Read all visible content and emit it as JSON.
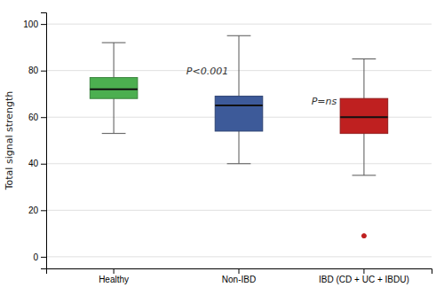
{
  "chart_data": {
    "type": "box",
    "ylabel": "Total signal strength",
    "categories": [
      "Healthy",
      "Non-IBD",
      "IBD (CD + UC + IBDU)"
    ],
    "boxes": [
      {
        "q1": 68,
        "median": 72,
        "q3": 77,
        "whislo": 53,
        "whishi": 92,
        "fliers": []
      },
      {
        "q1": 54,
        "median": 65,
        "q3": 69,
        "whislo": 40,
        "whishi": 95,
        "fliers": []
      },
      {
        "q1": 53,
        "median": 60,
        "q3": 68,
        "whislo": 35,
        "whishi": 85,
        "fliers": [
          9
        ]
      }
    ],
    "colors": [
      "#4caf50",
      "#3d5a99",
      "#bf2020"
    ],
    "ylim": [
      -5,
      105
    ],
    "yticks": [
      0,
      20,
      40,
      60,
      80,
      100
    ],
    "grid": true,
    "annotations": [
      {
        "text": "P<0.001",
        "y": 80
      },
      {
        "text": "P=ns",
        "y": 67
      }
    ]
  }
}
